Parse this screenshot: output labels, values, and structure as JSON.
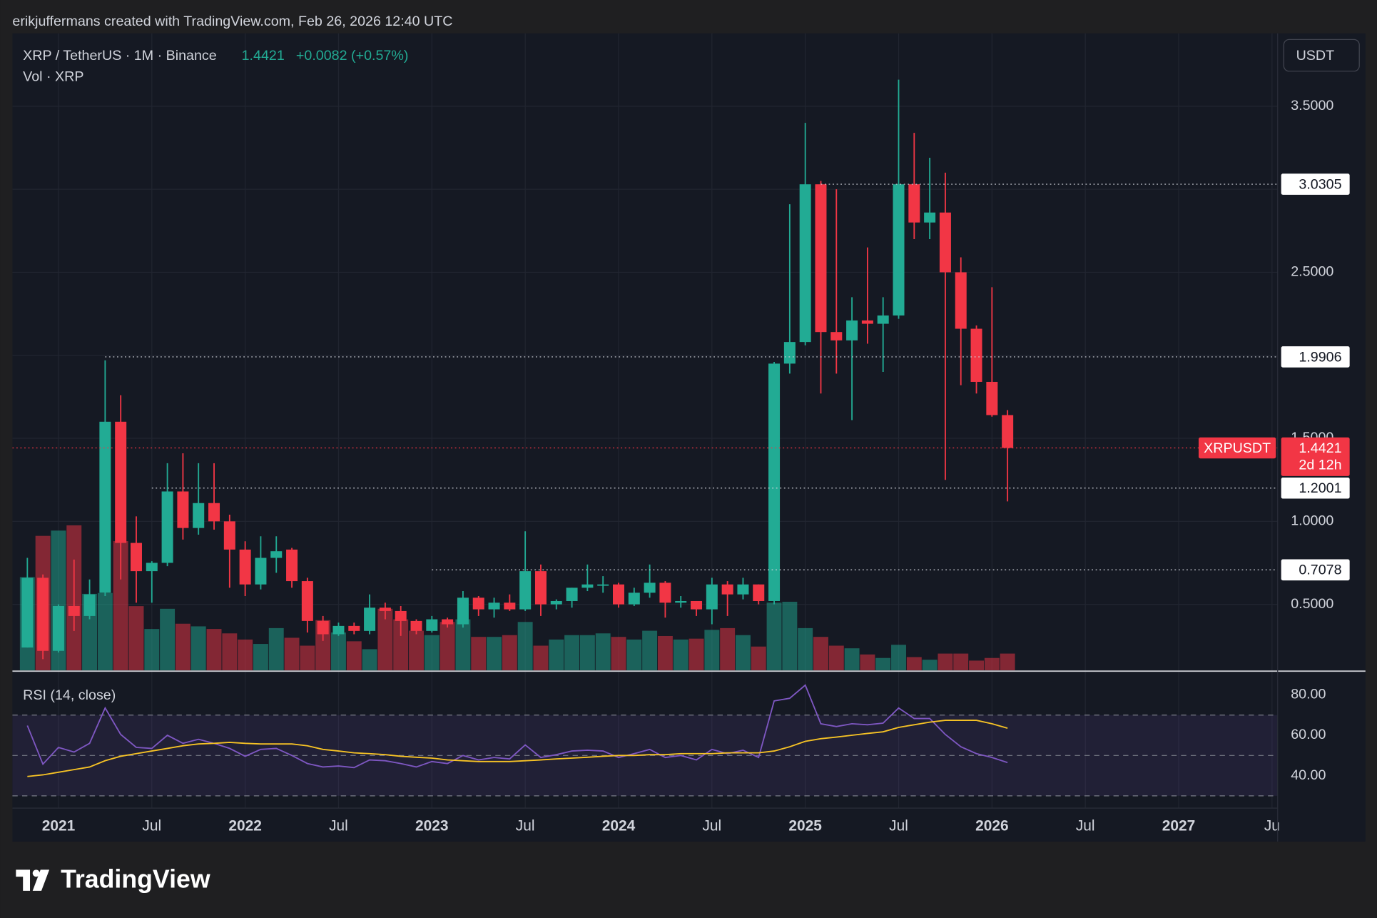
{
  "header": {
    "credit": "erikjuffermans created with TradingView.com, Feb 26, 2026 12:40 UTC"
  },
  "footer": {
    "brand": "TradingView"
  },
  "chart_data": [
    {
      "type": "candlestick",
      "title": "XRP / TetherUS · 1M · Binance",
      "change": "+0.0082 (+0.57%)",
      "currency": "USDT",
      "up_color": "#22ab94",
      "down_color": "#f23645",
      "x": [
        "2020-11",
        "2020-12",
        "2021-01",
        "2021-02",
        "2021-03",
        "2021-04",
        "2021-05",
        "2021-06",
        "2021-07",
        "2021-08",
        "2021-09",
        "2021-10",
        "2021-11",
        "2021-12",
        "2022-01",
        "2022-02",
        "2022-03",
        "2022-04",
        "2022-05",
        "2022-06",
        "2022-07",
        "2022-08",
        "2022-09",
        "2022-10",
        "2022-11",
        "2022-12",
        "2023-01",
        "2023-02",
        "2023-03",
        "2023-04",
        "2023-05",
        "2023-06",
        "2023-07",
        "2023-08",
        "2023-09",
        "2023-10",
        "2023-11",
        "2023-12",
        "2024-01",
        "2024-02",
        "2024-03",
        "2024-04",
        "2024-05",
        "2024-06",
        "2024-07",
        "2024-08",
        "2024-09",
        "2024-10",
        "2024-11",
        "2024-12",
        "2025-01",
        "2025-02",
        "2025-03",
        "2025-04",
        "2025-05",
        "2025-06",
        "2025-07",
        "2025-08",
        "2025-09",
        "2025-10",
        "2025-11",
        "2025-12",
        "2026-01",
        "2026-02"
      ],
      "open": [
        0.24,
        0.66,
        0.22,
        0.49,
        0.43,
        0.57,
        1.6,
        0.87,
        0.7,
        0.75,
        1.18,
        0.96,
        1.11,
        1.0,
        0.83,
        0.62,
        0.78,
        0.83,
        0.64,
        0.4,
        0.32,
        0.37,
        0.34,
        0.48,
        0.46,
        0.4,
        0.34,
        0.41,
        0.38,
        0.54,
        0.47,
        0.51,
        0.47,
        0.7,
        0.5,
        0.52,
        0.6,
        0.62,
        0.62,
        0.5,
        0.57,
        0.63,
        0.51,
        0.52,
        0.47,
        0.62,
        0.56,
        0.62,
        0.52,
        1.95,
        2.08,
        3.03,
        2.14,
        2.09,
        2.21,
        2.19,
        2.24,
        3.03,
        2.8,
        2.86,
        2.5,
        2.16,
        1.84,
        1.64
      ],
      "high": [
        0.78,
        0.68,
        0.5,
        0.77,
        0.65,
        1.97,
        1.76,
        1.03,
        0.76,
        1.35,
        1.41,
        1.35,
        1.35,
        1.04,
        0.88,
        0.91,
        0.91,
        0.84,
        0.66,
        0.43,
        0.39,
        0.39,
        0.56,
        0.51,
        0.49,
        0.41,
        0.43,
        0.42,
        0.58,
        0.55,
        0.54,
        0.56,
        0.94,
        0.74,
        0.53,
        0.6,
        0.74,
        0.67,
        0.63,
        0.6,
        0.74,
        0.64,
        0.55,
        0.52,
        0.66,
        0.64,
        0.66,
        0.62,
        1.96,
        2.91,
        3.4,
        3.05,
        3.0,
        2.35,
        2.65,
        2.35,
        3.66,
        3.34,
        3.19,
        3.1,
        2.59,
        2.18,
        2.41,
        1.67
      ],
      "low": [
        0.24,
        0.17,
        0.21,
        0.34,
        0.41,
        0.55,
        0.65,
        0.51,
        0.51,
        0.73,
        0.89,
        0.92,
        0.95,
        0.6,
        0.55,
        0.59,
        0.69,
        0.6,
        0.33,
        0.28,
        0.31,
        0.32,
        0.32,
        0.41,
        0.31,
        0.32,
        0.33,
        0.36,
        0.36,
        0.43,
        0.42,
        0.46,
        0.46,
        0.43,
        0.47,
        0.48,
        0.58,
        0.57,
        0.48,
        0.49,
        0.54,
        0.42,
        0.48,
        0.43,
        0.38,
        0.43,
        0.53,
        0.5,
        0.5,
        1.89,
        2.06,
        1.77,
        1.89,
        1.61,
        2.07,
        1.9,
        2.22,
        2.7,
        2.7,
        1.25,
        1.82,
        1.77,
        1.63,
        1.12
      ],
      "close": [
        0.66,
        0.22,
        0.49,
        0.43,
        0.56,
        1.6,
        0.87,
        0.7,
        0.75,
        1.18,
        0.96,
        1.11,
        1.0,
        0.83,
        0.62,
        0.78,
        0.82,
        0.64,
        0.4,
        0.32,
        0.37,
        0.34,
        0.48,
        0.46,
        0.4,
        0.34,
        0.41,
        0.38,
        0.54,
        0.47,
        0.51,
        0.47,
        0.7,
        0.5,
        0.52,
        0.6,
        0.62,
        0.62,
        0.5,
        0.57,
        0.63,
        0.51,
        0.52,
        0.47,
        0.62,
        0.56,
        0.62,
        0.52,
        1.95,
        2.08,
        3.03,
        2.14,
        2.09,
        2.21,
        2.19,
        2.24,
        3.03,
        2.8,
        2.86,
        2.5,
        2.16,
        1.84,
        1.64,
        1.4421
      ],
      "volume": {
        "name": "Vol · XRP",
        "values": [
          10.6,
          15.3,
          15.9,
          16.5,
          8.7,
          8.8,
          14.7,
          7.3,
          4.7,
          7.0,
          5.3,
          5.0,
          4.7,
          4.2,
          3.5,
          3.0,
          4.8,
          3.7,
          2.8,
          5.7,
          4.3,
          3.3,
          2.4,
          7.0,
          5.8,
          4.5,
          4.0,
          5.5,
          5.8,
          3.8,
          3.8,
          4.0,
          5.5,
          2.8,
          3.5,
          4.0,
          4.0,
          4.2,
          3.8,
          3.5,
          4.5,
          3.9,
          3.5,
          3.6,
          4.6,
          4.8,
          4.0,
          2.7,
          7.7,
          7.8,
          4.8,
          3.8,
          2.8,
          2.5,
          1.8,
          1.4,
          2.9,
          1.5,
          1.2,
          1.9,
          1.9,
          1.1,
          1.4,
          1.9
        ]
      },
      "ylim": [
        0.103,
        3.939
      ],
      "yticks": [
        {
          "value": 0.5,
          "label": "0.5000"
        },
        {
          "value": 1,
          "label": "1.0000"
        },
        {
          "value": 1.5,
          "label": "1.5000"
        },
        {
          "value": 2,
          "label": "2.0000"
        },
        {
          "value": 2.5,
          "label": "2.5000"
        },
        {
          "value": 3,
          "label": "3.0000"
        },
        {
          "value": 3.5,
          "label": "3.5000"
        }
      ],
      "xticks": [
        {
          "value": "2021-01",
          "label": "2021"
        },
        {
          "value": "2021-07",
          "label": "Jul"
        },
        {
          "value": "2022-01",
          "label": "2022"
        },
        {
          "value": "2022-07",
          "label": "Jul"
        },
        {
          "value": "2023-01",
          "label": "2023"
        },
        {
          "value": "2023-07",
          "label": "Jul"
        },
        {
          "value": "2024-01",
          "label": "2024"
        },
        {
          "value": "2024-07",
          "label": "Jul"
        },
        {
          "value": "2025-01",
          "label": "2025"
        },
        {
          "value": "2025-07",
          "label": "Jul"
        },
        {
          "value": "2026-01",
          "label": "2026"
        },
        {
          "value": "2026-07",
          "label": "Jul"
        },
        {
          "value": "2027-01",
          "label": "2027"
        },
        {
          "value": "2027-07",
          "label": "Ju"
        }
      ],
      "levels": [
        {
          "value": 3.0305,
          "from": "2025-02"
        },
        {
          "value": 1.9906,
          "from": "2021-04"
        },
        {
          "value": 1.2001,
          "from": "2021-07"
        },
        {
          "value": 0.7078,
          "from": "2023-01"
        }
      ],
      "last": {
        "symbol": "XRPUSDT",
        "countdown": "2d 12h",
        "color": "#f23645"
      },
      "grid": true
    },
    {
      "type": "line",
      "title": "RSI (14, close)",
      "series": [
        {
          "color": "#7e57c2",
          "values": [
            64.8,
            45.7,
            54,
            51.7,
            56,
            73.5,
            60.4,
            54,
            53.5,
            60,
            56,
            58,
            56,
            53.5,
            49.6,
            53,
            53.5,
            50,
            46,
            44.3,
            44.8,
            44,
            47.8,
            47.4,
            46,
            44.3,
            47,
            46,
            50,
            47.8,
            49,
            48.3,
            55.2,
            49,
            50.4,
            52.2,
            52.6,
            52.2,
            49,
            50.9,
            53,
            49,
            50,
            47.8,
            53,
            50.9,
            52.6,
            49,
            77,
            78.3,
            84.8,
            65.7,
            64.3,
            65.7,
            65.2,
            66,
            73.5,
            68.3,
            68.3,
            60.4,
            54.3,
            50.9,
            49,
            46.5
          ]
        },
        {
          "color": "#f7c325",
          "values": [
            39.6,
            40.4,
            41.7,
            43,
            44.3,
            47.4,
            49.6,
            50.9,
            52.2,
            53.5,
            54.8,
            55.7,
            56,
            56.5,
            56,
            55.7,
            55.7,
            55.7,
            54.8,
            53,
            52.2,
            51.3,
            50.9,
            50.4,
            49.6,
            49.1,
            48.7,
            47.8,
            47.4,
            47,
            47,
            47,
            47.4,
            47.8,
            48.3,
            48.7,
            49.1,
            49.6,
            50,
            50,
            50.4,
            50.4,
            50.9,
            50.9,
            50.9,
            51.3,
            51.3,
            51.3,
            52.2,
            54.3,
            57,
            58.3,
            59.1,
            60,
            60.9,
            61.7,
            63.9,
            65.2,
            66.5,
            67.4,
            67.4,
            67.4,
            65.7,
            63.5
          ]
        }
      ],
      "ylim": [
        23.9,
        91.3
      ],
      "yticks": [
        {
          "value": 80,
          "label": "80.00"
        },
        {
          "value": 60,
          "label": "60.00"
        },
        {
          "value": 40,
          "label": "40.00"
        }
      ],
      "bands": [
        70,
        50,
        30
      ]
    }
  ]
}
